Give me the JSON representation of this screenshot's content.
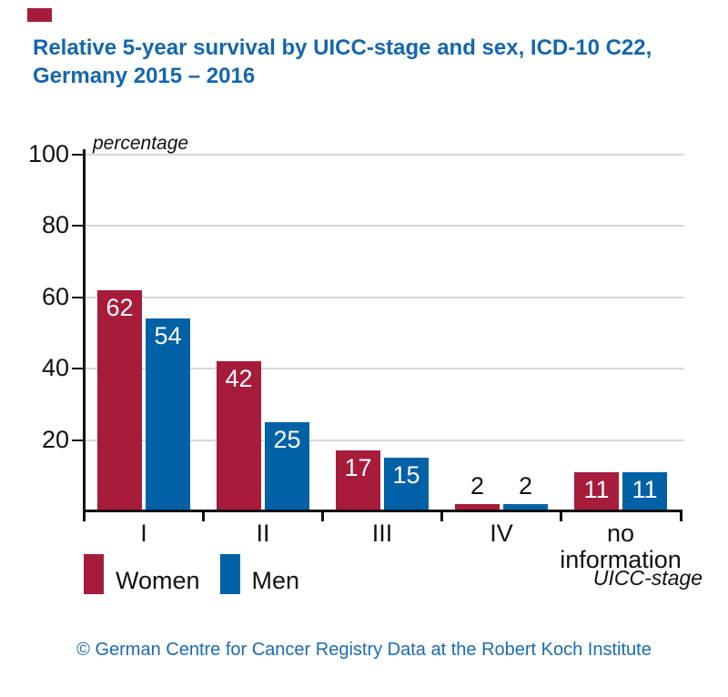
{
  "page": {
    "title": "Relative 5-year survival by UICC-stage and sex, ICD-10 C22,\nGermany 2015 – 2016",
    "footer": "© German Centre for Cancer Registry Data at the Robert Koch Institute"
  },
  "colors": {
    "title_blue": "#1566AE",
    "footer_blue": "#1B6BAE",
    "women_red": "#A71B3B",
    "men_blue": "#0061A7",
    "gridline_gray": "#D9D9D9",
    "axis_black": "#111111",
    "value_label_inside": "#FFFFFF",
    "value_label_outside": "#111111"
  },
  "chart_data": {
    "type": "bar",
    "title": "Relative 5-year survival by UICC-stage and sex, ICD-10 C22, Germany 2015 – 2016",
    "unit_label": "percentage",
    "xlabel": "UICC-stage",
    "categories": [
      "I",
      "II",
      "III",
      "IV",
      "no\ninformation"
    ],
    "series": [
      {
        "name": "Women",
        "color": "#A71B3B",
        "values": [
          62,
          42,
          17,
          2,
          11
        ]
      },
      {
        "name": "Men",
        "color": "#0061A7",
        "values": [
          54,
          25,
          15,
          2,
          11
        ]
      }
    ],
    "ylim": [
      0,
      100
    ],
    "yticks": [
      100,
      80,
      60,
      40,
      20
    ],
    "grid": true,
    "legend_position": "bottom-left"
  }
}
